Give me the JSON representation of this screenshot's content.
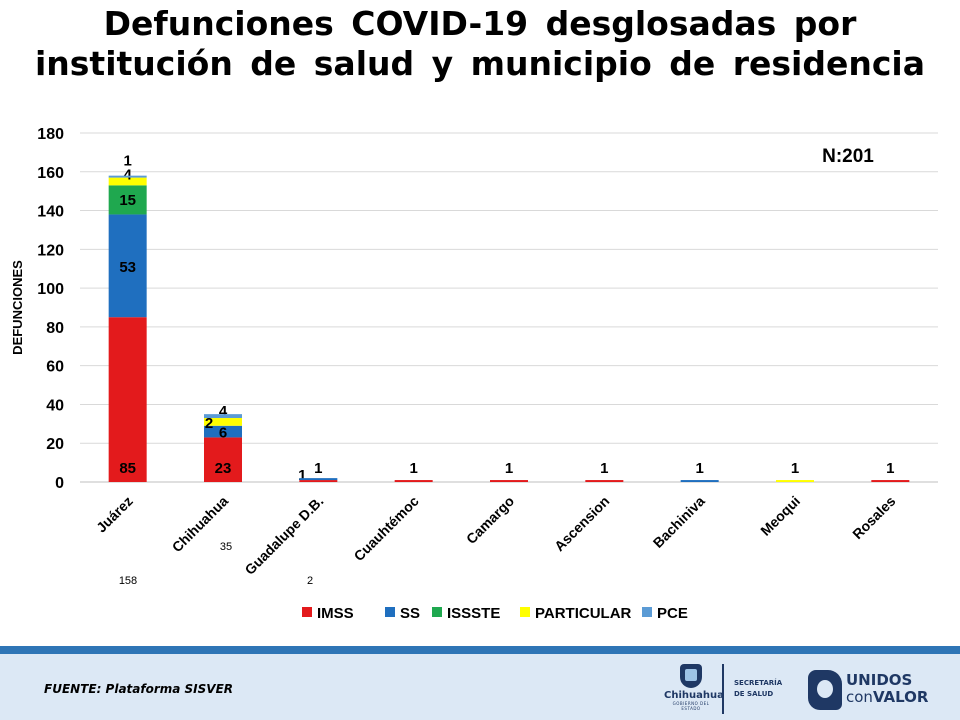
{
  "title_line1": "Defunciones COVID-19 desglosadas por",
  "title_line2": "institución de salud y municipio de residencia",
  "chart_data": {
    "type": "bar",
    "stacked": true,
    "ylabel": "DEFUNCIONES",
    "ylim": [
      0,
      180
    ],
    "yticks": [
      0,
      20,
      40,
      60,
      80,
      100,
      120,
      140,
      160,
      180
    ],
    "grid": true,
    "legend_position": "bottom",
    "annotation": "N:201",
    "categories": [
      "Juárez",
      "Chihuahua",
      "Guadalupe D.B.",
      "Cuauhtémoc",
      "Camargo",
      "Ascension",
      "Bachiniva",
      "Meoqui",
      "Rosales"
    ],
    "totals": [
      158,
      35,
      2,
      null,
      null,
      null,
      null,
      null,
      null
    ],
    "series": [
      {
        "name": "IMSS",
        "color": "#e31a1c",
        "values": [
          85,
          23,
          1,
          1,
          1,
          1,
          0,
          0,
          1
        ]
      },
      {
        "name": "SS",
        "color": "#1f6fbf",
        "values": [
          53,
          6,
          1,
          0,
          0,
          0,
          1,
          0,
          0
        ]
      },
      {
        "name": "ISSSTE",
        "color": "#1fa84f",
        "values": [
          15,
          0,
          0,
          0,
          0,
          0,
          0,
          0,
          0
        ]
      },
      {
        "name": "PARTICULAR",
        "color": "#ffff00",
        "values": [
          4,
          4,
          0,
          0,
          0,
          0,
          0,
          1,
          0
        ]
      },
      {
        "name": "PCE",
        "color": "#5b9bd5",
        "values": [
          1,
          2,
          0,
          0,
          0,
          0,
          0,
          0,
          0
        ]
      }
    ]
  },
  "footer": {
    "source": "FUENTE: Plataforma SISVER",
    "logo_chihuahua": "Chihuahua",
    "logo_chihuahua_sub": "GOBIERNO DEL ESTADO",
    "secretaria_line1": "SECRETARÍA",
    "secretaria_line2": "DE SALUD",
    "unidos_line1": "UNIDOS",
    "unidos_con": "con",
    "unidos_valor": "VALOR"
  }
}
